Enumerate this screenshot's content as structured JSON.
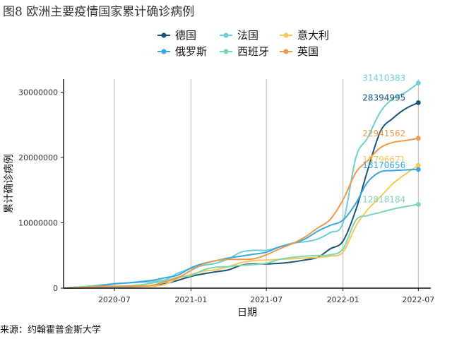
{
  "figure": {
    "title": "图8 欧洲主要疫情国家累计确诊病例",
    "source": "来源：约翰霍普金斯大学"
  },
  "chart_data": {
    "type": "line",
    "xlabel": "日期",
    "ylabel": "累计确诊病例",
    "xlim": [
      "2020-03-01",
      "2022-07-31"
    ],
    "ylim": [
      0,
      32000000
    ],
    "x_ticks": [
      "2020-07",
      "2021-01",
      "2021-07",
      "2022-01",
      "2022-07"
    ],
    "y_ticks": [
      0,
      10000000,
      20000000,
      30000000
    ],
    "y_tick_labels": [
      "0",
      "10000000",
      "20000000",
      "30000000"
    ],
    "grid": "vertical",
    "legend_position": "top",
    "x": [
      "2020-03-01",
      "2020-04-01",
      "2020-05-01",
      "2020-06-01",
      "2020-07-01",
      "2020-08-01",
      "2020-09-01",
      "2020-10-01",
      "2020-11-01",
      "2020-12-01",
      "2021-01-01",
      "2021-02-01",
      "2021-03-01",
      "2021-04-01",
      "2021-05-01",
      "2021-06-01",
      "2021-07-01",
      "2021-08-01",
      "2021-09-01",
      "2021-10-01",
      "2021-11-01",
      "2021-12-01",
      "2022-01-01",
      "2022-02-01",
      "2022-03-01",
      "2022-04-01",
      "2022-05-01",
      "2022-06-01",
      "2022-07-01"
    ],
    "series": [
      {
        "name": "德国",
        "color": "#1b5577",
        "end_label": "28394995",
        "values": [
          0,
          150000,
          180000,
          190000,
          200000,
          210000,
          250000,
          300000,
          700000,
          1200000,
          1800000,
          2200000,
          2500000,
          2800000,
          3500000,
          3700000,
          3700000,
          3800000,
          4000000,
          4300000,
          4700000,
          6000000,
          7200000,
          12000000,
          18000000,
          24000000,
          26000000,
          27500000,
          28394995
        ]
      },
      {
        "name": "法国",
        "color": "#6fcfd6",
        "end_label": "31410383",
        "values": [
          0,
          150000,
          300000,
          500000,
          700000,
          800000,
          900000,
          1000000,
          1300000,
          2300000,
          3000000,
          3500000,
          3800000,
          4500000,
          5500000,
          5800000,
          5800000,
          6300000,
          6900000,
          7100000,
          7500000,
          8500000,
          10000000,
          20000000,
          23000000,
          27000000,
          29000000,
          30000000,
          31410383
        ]
      },
      {
        "name": "意大利",
        "color": "#f7c85a",
        "end_label": "18796671",
        "values": [
          0,
          100000,
          200000,
          230000,
          240000,
          250000,
          270000,
          300000,
          600000,
          1500000,
          2100000,
          2600000,
          2800000,
          3300000,
          3900000,
          4200000,
          4300000,
          4400000,
          4500000,
          4600000,
          4700000,
          4900000,
          5500000,
          9500000,
          12000000,
          14000000,
          16000000,
          17500000,
          18796671
        ]
      },
      {
        "name": "俄罗斯",
        "color": "#3aa7e0",
        "end_label": "18170656",
        "values": [
          0,
          20000,
          100000,
          400000,
          650000,
          800000,
          1000000,
          1200000,
          1600000,
          2000000,
          3100000,
          3800000,
          4200000,
          4600000,
          4900000,
          5200000,
          5500000,
          6300000,
          6800000,
          7500000,
          8700000,
          9600000,
          10400000,
          13000000,
          16200000,
          17800000,
          18000000,
          18100000,
          18170656
        ]
      },
      {
        "name": "西班牙",
        "color": "#7fd6b0",
        "end_label": "12818184",
        "values": [
          0,
          100000,
          230000,
          240000,
          250000,
          330000,
          500000,
          800000,
          1100000,
          1700000,
          1900000,
          2800000,
          3200000,
          3300000,
          3500000,
          3600000,
          3800000,
          4400000,
          4700000,
          4900000,
          5000000,
          5100000,
          6000000,
          10400000,
          11100000,
          11600000,
          12100000,
          12500000,
          12818184
        ]
      },
      {
        "name": "英国",
        "color": "#f0994a",
        "end_label": "22941562",
        "values": [
          0,
          40000,
          170000,
          280000,
          290000,
          300000,
          320000,
          450000,
          1000000,
          1600000,
          2700000,
          3700000,
          4200000,
          4400000,
          4400000,
          4500000,
          5100000,
          6000000,
          6800000,
          7800000,
          9200000,
          10500000,
          13500000,
          17700000,
          19500000,
          21500000,
          22300000,
          22600000,
          22941562
        ]
      }
    ]
  }
}
